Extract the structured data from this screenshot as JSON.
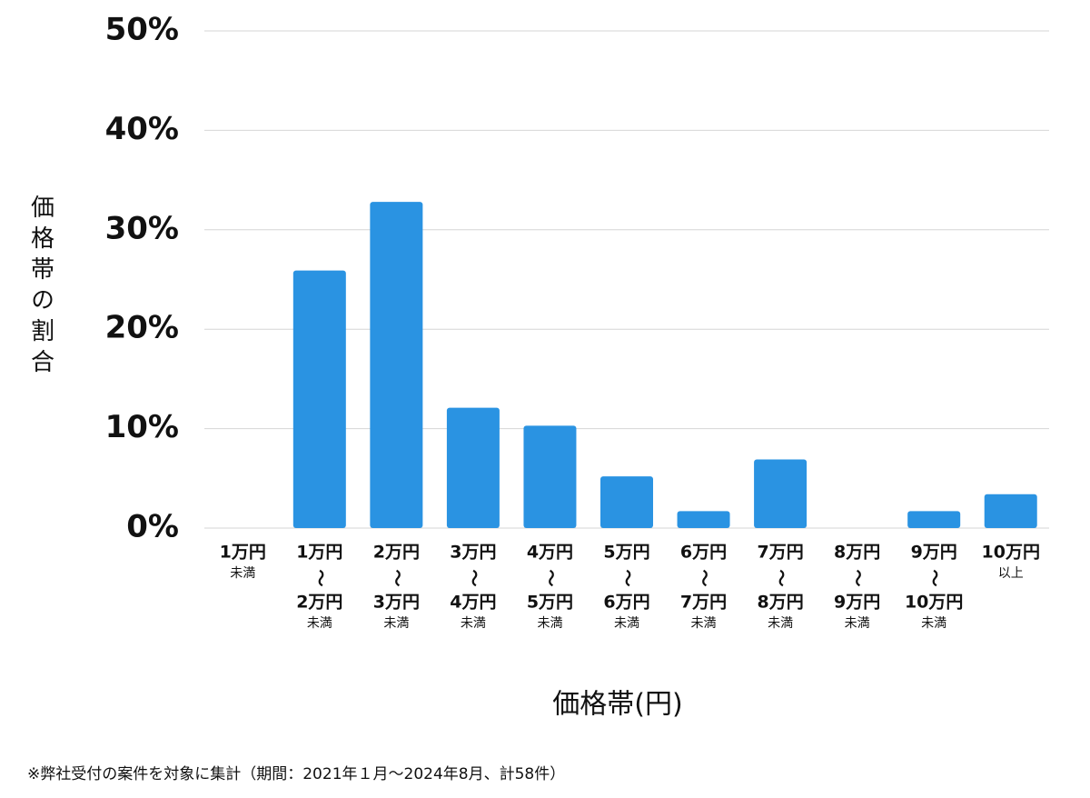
{
  "chart_data": {
    "type": "bar",
    "y_label": "価格帯の割合",
    "x_label": "価格帯(円)",
    "footnote": "※弊社受付の案件を対象に集計（期間：2021年１月〜2024年8月、計58件）",
    "categories": [
      [
        "1万円",
        "未満"
      ],
      [
        "1万円",
        "〜",
        "2万円",
        "未満"
      ],
      [
        "2万円",
        "〜",
        "3万円",
        "未満"
      ],
      [
        "3万円",
        "〜",
        "4万円",
        "未満"
      ],
      [
        "4万円",
        "〜",
        "5万円",
        "未満"
      ],
      [
        "5万円",
        "〜",
        "6万円",
        "未満"
      ],
      [
        "6万円",
        "〜",
        "7万円",
        "未満"
      ],
      [
        "7万円",
        "〜",
        "8万円",
        "未満"
      ],
      [
        "8万円",
        "〜",
        "9万円",
        "未満"
      ],
      [
        "9万円",
        "〜",
        "10万円",
        "未満"
      ],
      [
        "10万円",
        "以上"
      ]
    ],
    "values": [
      0,
      25.9,
      32.8,
      12.1,
      10.3,
      5.2,
      1.7,
      6.9,
      0,
      1.7,
      3.4
    ],
    "color": "#2a93e2",
    "ylim": [
      0,
      50
    ],
    "yticks": [
      {
        "value": 0,
        "label": "0%"
      },
      {
        "value": 10,
        "label": "10%"
      },
      {
        "value": 20,
        "label": "20%"
      },
      {
        "value": 30,
        "label": "30%"
      },
      {
        "value": 40,
        "label": "40%"
      },
      {
        "value": 50,
        "label": "50%"
      }
    ],
    "grid": true
  }
}
